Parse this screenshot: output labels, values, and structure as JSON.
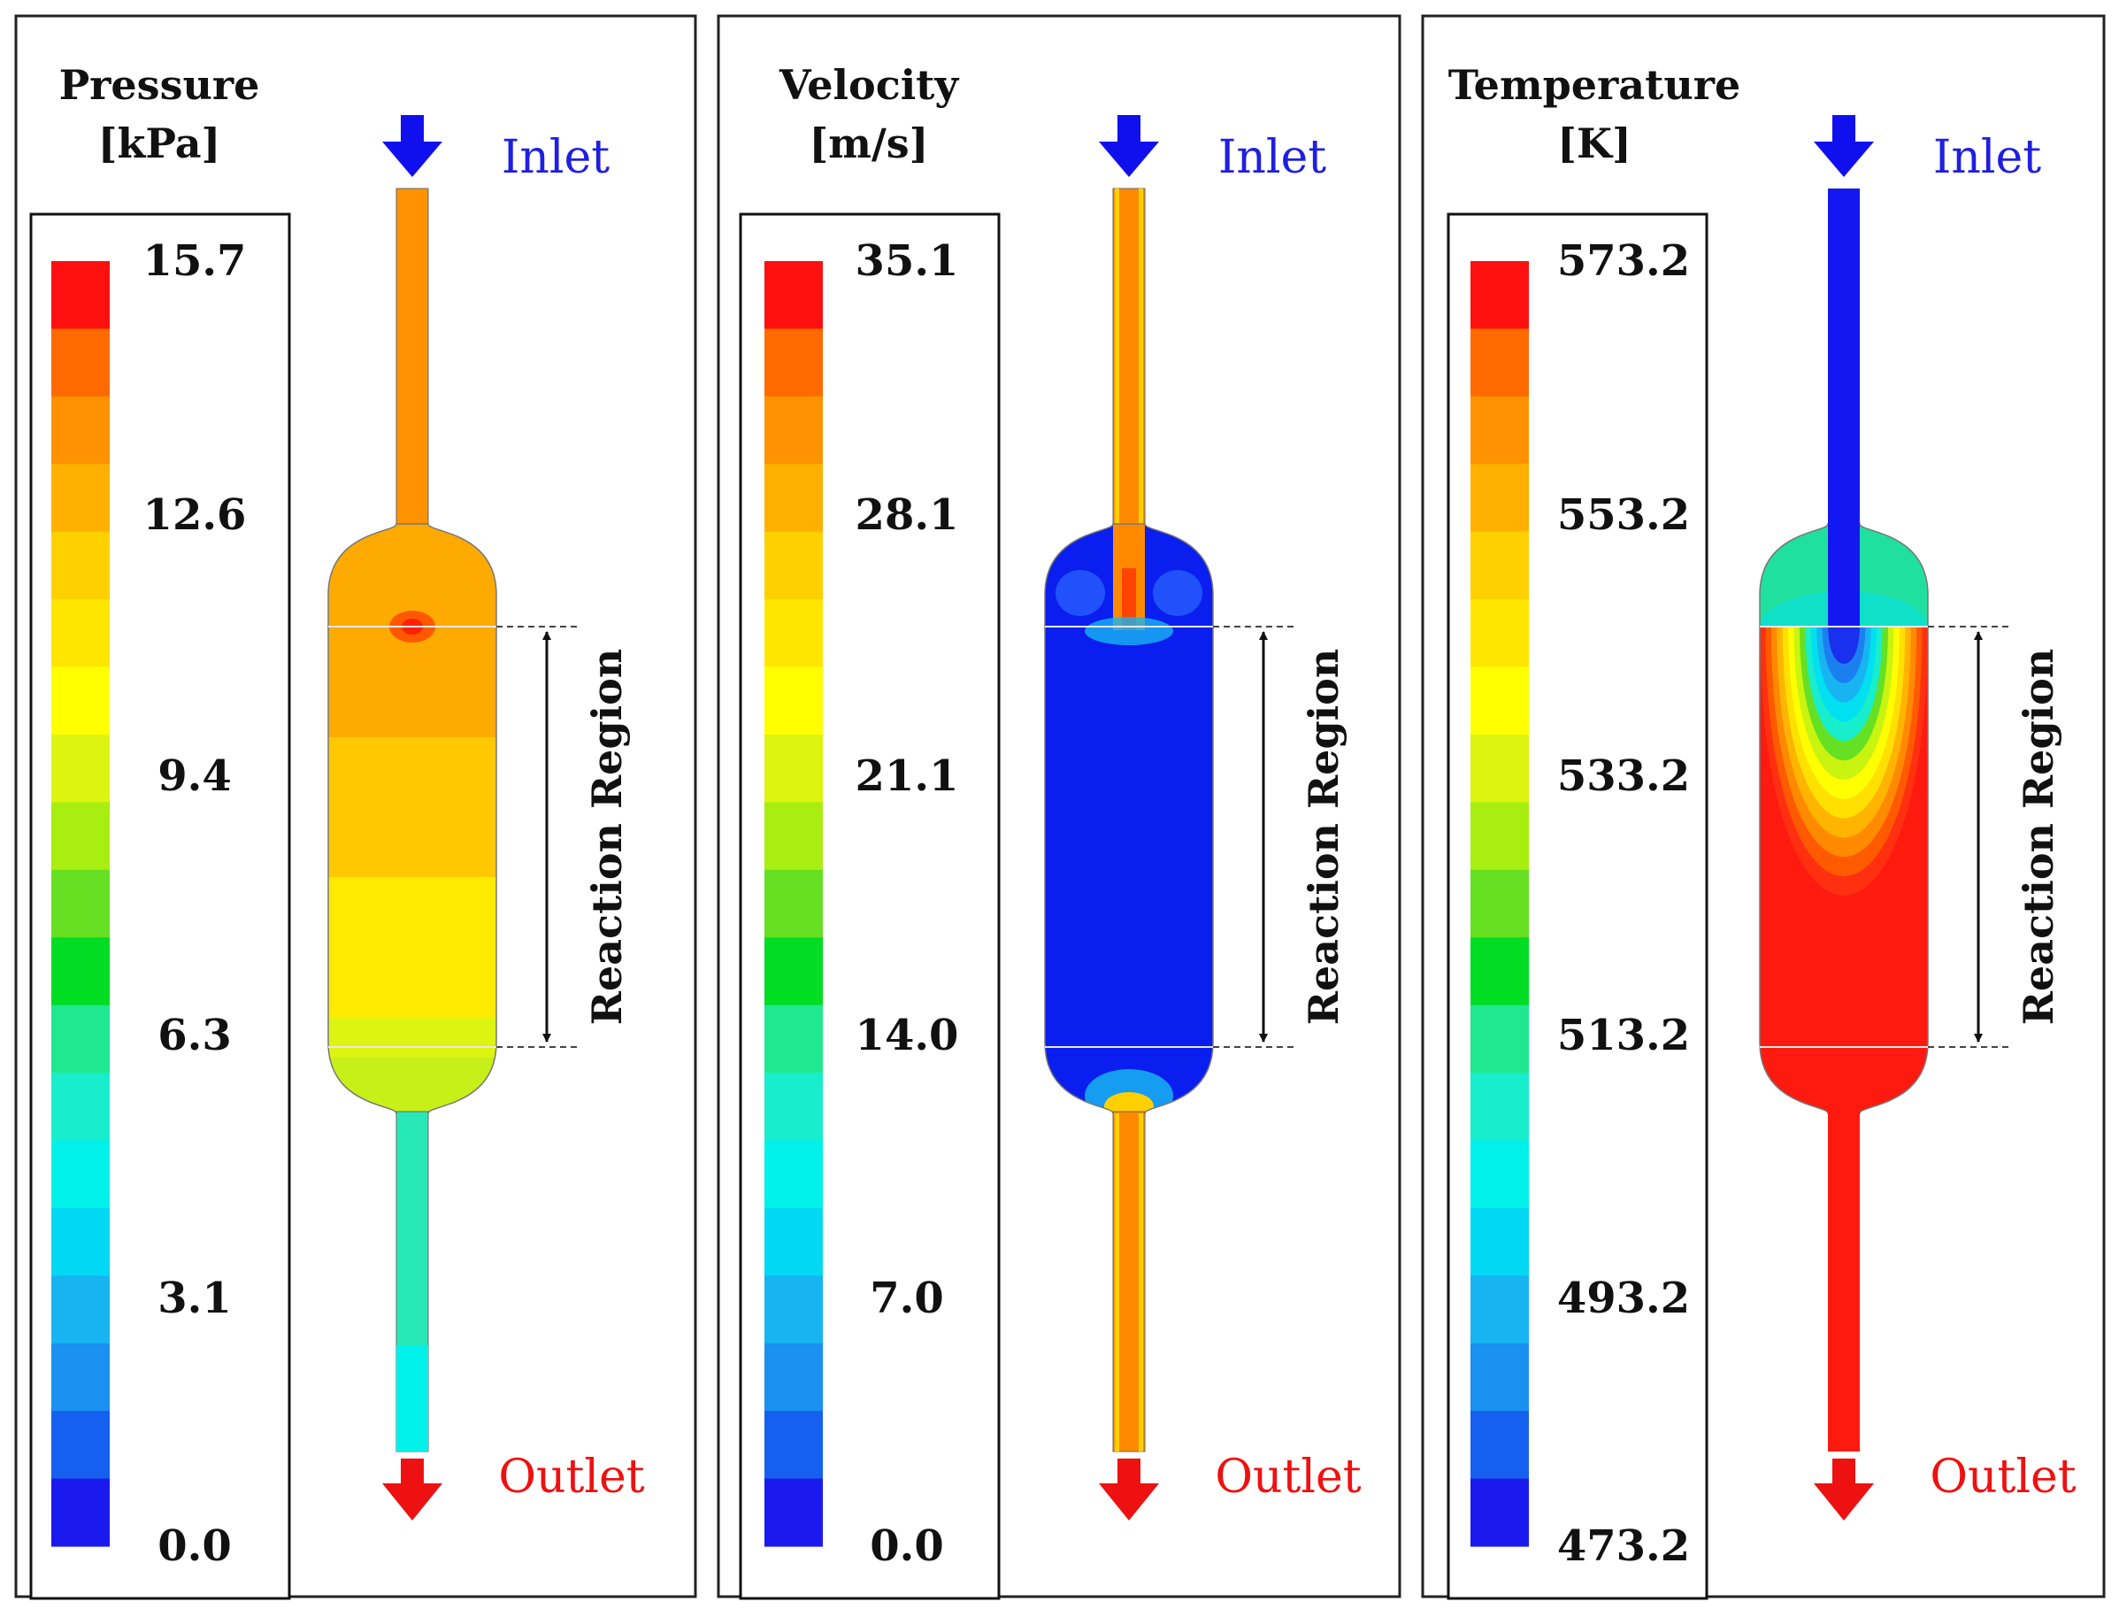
{
  "colormap": [
    "#1a1aee",
    "#1560ee",
    "#1a90f0",
    "#18b4f2",
    "#00d8f4",
    "#00f0ea",
    "#18eecc",
    "#20e890",
    "#00dd22",
    "#66e022",
    "#a8ee10",
    "#ddf410",
    "#ffff00",
    "#ffe600",
    "#ffd000",
    "#ffb000",
    "#ff9200",
    "#ff6a00",
    "#ff1010"
  ],
  "panels": [
    {
      "id": "pressure",
      "title_line1": "Pressure",
      "title_line2": "[kPa]",
      "ticks": [
        "15.7",
        "12.6",
        "9.4",
        "6.3",
        "3.1",
        "0.0"
      ],
      "inlet_label": "Inlet",
      "outlet_label": "Outlet",
      "region_label": "Reaction Region",
      "colors": {
        "inlet_pipe": "#ff9200",
        "head_top": "#ffaa00",
        "band_a": "#ffaa00",
        "band_b": "#ffc800",
        "band_c": "#ffea00",
        "band_d": "#ddf410",
        "head_bottom": "#c6f018",
        "outlet_pipe": "#28e8b8",
        "outlet_pipe_end": "#00f0ea",
        "hotspot": "#ff4400"
      }
    },
    {
      "id": "velocity",
      "title_line1": "Velocity",
      "title_line2": "[m/s]",
      "ticks": [
        "35.1",
        "28.1",
        "21.1",
        "14.0",
        "7.0",
        "0.0"
      ],
      "inlet_label": "Inlet",
      "outlet_label": "Outlet",
      "region_label": "Reaction Region",
      "colors": {
        "pipe": "#ff8a00",
        "pipe_edge": "#ffd000",
        "vessel": "#0a1ef0",
        "jet": "#ff4400",
        "swirl": "#2a66ff"
      }
    },
    {
      "id": "temperature",
      "title_line1": "Temperature",
      "title_line2": "[K]",
      "ticks": [
        "573.2",
        "553.2",
        "533.2",
        "513.2",
        "493.2",
        "473.2"
      ],
      "inlet_label": "Inlet",
      "outlet_label": "Outlet",
      "region_label": "Reaction Region",
      "colors": {
        "inlet_pipe": "#1418f0",
        "head_top": "#20e0a0",
        "vessel": "#ff1a10",
        "outlet_pipe": "#ff1a10",
        "plume": [
          "#ff3010",
          "#ff5a00",
          "#ff8a00",
          "#ffb400",
          "#ffe000",
          "#ffff00",
          "#c8f410",
          "#66e022",
          "#18eecc",
          "#00e0f0",
          "#18b4f2",
          "#1a80f0",
          "#1a30ee"
        ]
      }
    }
  ]
}
